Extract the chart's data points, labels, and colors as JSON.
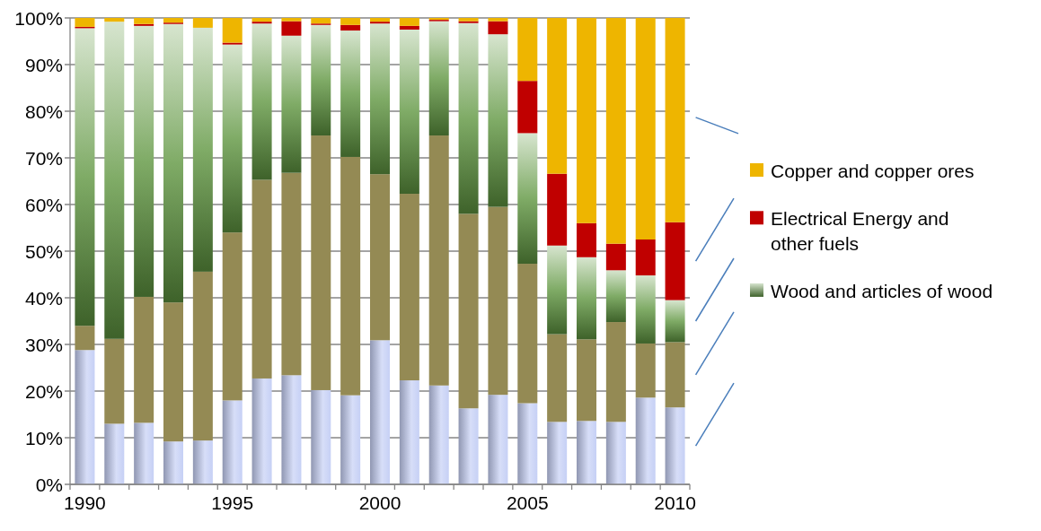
{
  "chart_data": {
    "type": "bar",
    "stacked": true,
    "categories": [
      "1990",
      null,
      null,
      null,
      null,
      "1995",
      null,
      null,
      null,
      null,
      "2000",
      null,
      null,
      null,
      null,
      "2005",
      null,
      null,
      null,
      null,
      "2010"
    ],
    "series": [
      {
        "color": "#c6d0f5",
        "values": [
          28.8,
          13,
          13.2,
          9.2,
          9.4,
          18,
          22.7,
          23.4,
          20.2,
          19.1,
          30.9,
          22.3,
          21.2,
          16.3,
          19.2,
          17.4,
          13.4,
          13.6,
          13.4,
          18.6,
          16.5
        ]
      },
      {
        "color": "#948a54",
        "values": [
          5.2,
          18.2,
          27,
          29.8,
          36.2,
          36,
          42.6,
          43.4,
          54.6,
          51.1,
          35.6,
          40,
          53.6,
          41.7,
          40.3,
          29.9,
          18.8,
          17.5,
          21.4,
          11.6,
          14
        ]
      },
      {
        "name": "Wood and articles of wood",
        "color": "#5f9640",
        "values": [
          63.8,
          68,
          58.1,
          59.7,
          52.3,
          40.3,
          33.5,
          29.4,
          23.7,
          27.1,
          32.3,
          35.2,
          24.5,
          40.9,
          37,
          28,
          19,
          17.6,
          11.1,
          14.6,
          9
        ]
      },
      {
        "name": "Electrical Energy and other fuels",
        "color": "#c00000",
        "values": [
          0.3,
          0,
          0.4,
          0.3,
          0,
          0.4,
          0.4,
          3.1,
          0.3,
          1.2,
          0.4,
          0.8,
          0.3,
          0.4,
          2.8,
          11.2,
          15.4,
          7.3,
          5.7,
          7.7,
          16.7
        ]
      },
      {
        "name": "Copper and copper ores",
        "color": "#eeb500",
        "values": [
          1.9,
          0.8,
          1.3,
          1,
          2.1,
          5.3,
          0.8,
          0.7,
          1.2,
          1.5,
          0.8,
          1.7,
          0.4,
          0.7,
          0.7,
          13.5,
          33.4,
          44,
          48.4,
          47.5,
          43.8
        ]
      }
    ],
    "ylim": [
      0,
      100
    ],
    "yticks": [
      {
        "value": 0,
        "label": "0%"
      },
      {
        "value": 10,
        "label": "10%"
      },
      {
        "value": 20,
        "label": "20%"
      },
      {
        "value": 30,
        "label": "30%"
      },
      {
        "value": 40,
        "label": "40%"
      },
      {
        "value": 50,
        "label": "50%"
      },
      {
        "value": 60,
        "label": "60%"
      },
      {
        "value": 70,
        "label": "70%"
      },
      {
        "value": 80,
        "label": "80%"
      },
      {
        "value": 90,
        "label": "90%"
      },
      {
        "value": 100,
        "label": "100%"
      }
    ],
    "grid": "y",
    "legend": "right"
  }
}
